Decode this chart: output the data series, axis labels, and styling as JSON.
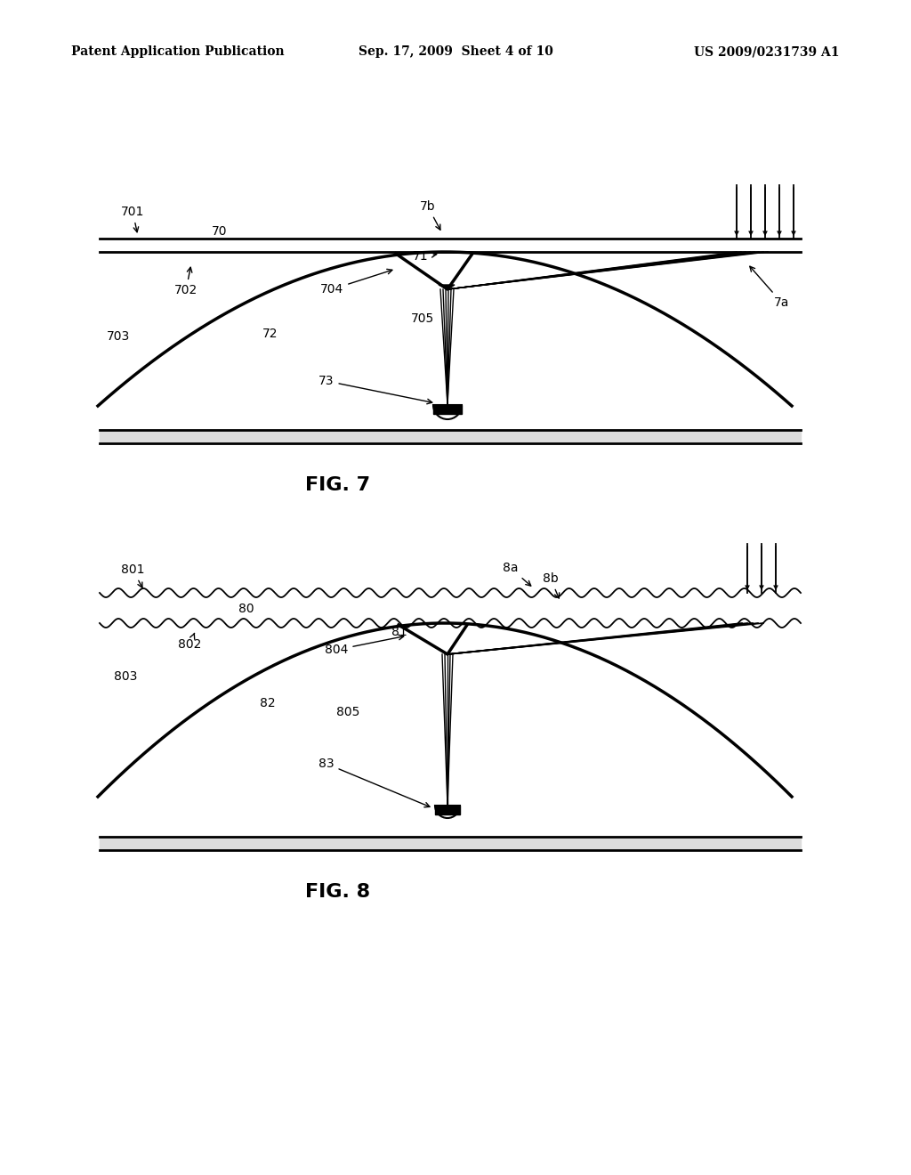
{
  "bg_color": "#ffffff",
  "header_left": "Patent Application Publication",
  "header_mid": "Sep. 17, 2009  Sheet 4 of 10",
  "header_right": "US 2009/0231739 A1",
  "fig7_caption": "FIG. 7",
  "fig8_caption": "FIG. 8"
}
